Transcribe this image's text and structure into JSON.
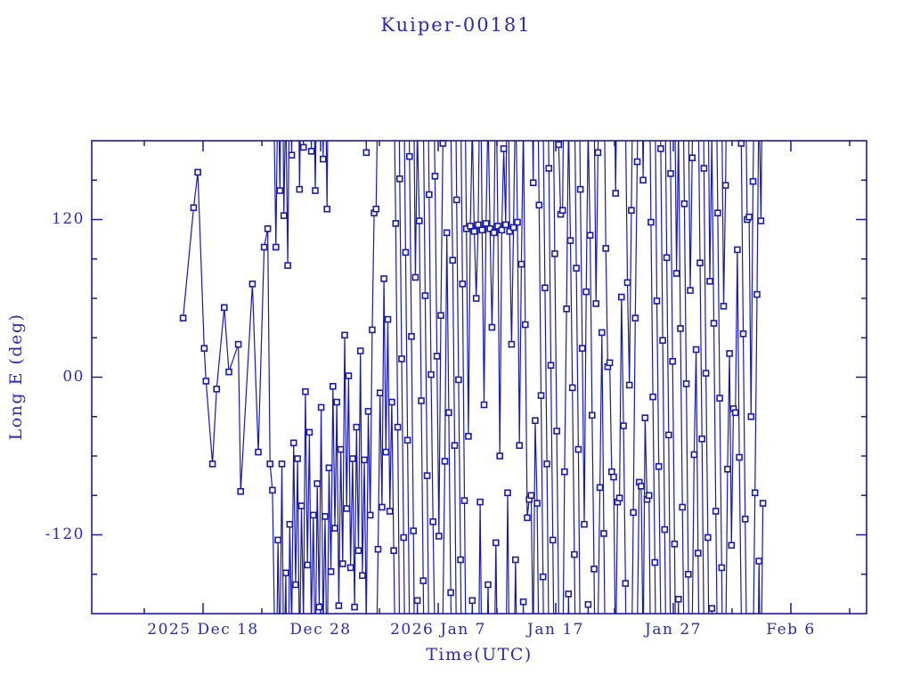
{
  "colors": {
    "background": "#ffffff",
    "plot_line": "#1a1aa4",
    "marker_stroke": "#1c1caa",
    "marker_fill": "#ffffff",
    "axis": "#1a1a9a",
    "text": "#2b2bb2"
  },
  "chart_data": {
    "type": "line",
    "title": "Kuiper-00181",
    "xlabel": "Time(UTC)",
    "ylabel": "Long E (deg)",
    "x_unit": "days since 2025 Dec 8 00:00 UTC",
    "x_range": [
      0.53,
      66.44
    ],
    "y_range": [
      -180,
      180
    ],
    "x_major_ticks": [
      {
        "day": 10,
        "label": "2025 Dec 18"
      },
      {
        "day": 20,
        "label": "Dec 28"
      },
      {
        "day": 30,
        "label": "2026 Jan 7"
      },
      {
        "day": 40,
        "label": "Jan 17"
      },
      {
        "day": 50,
        "label": "Jan 27"
      },
      {
        "day": 60,
        "label": "Feb 6"
      }
    ],
    "x_minor_step_days": 5,
    "y_major_ticks": [
      {
        "value": 120,
        "label": "120"
      },
      {
        "value": 0,
        "label": "00"
      },
      {
        "value": -120,
        "label": "-120"
      }
    ],
    "y_minor_step_deg": 30,
    "grid": false,
    "legend": "none",
    "marker": "open-square",
    "wrap_longitude_at": 180,
    "opening_points": [
      [
        8.3,
        45
      ],
      [
        9.2,
        129
      ],
      [
        9.55,
        156
      ],
      [
        10.1,
        22
      ],
      [
        10.25,
        -3
      ],
      [
        10.8,
        -66
      ],
      [
        11.15,
        -9
      ],
      [
        11.8,
        53
      ],
      [
        12.2,
        4
      ],
      [
        13.0,
        25
      ],
      [
        13.2,
        -87
      ],
      [
        14.2,
        71
      ],
      [
        14.7,
        -57
      ],
      [
        15.2,
        99
      ],
      [
        15.5,
        113
      ],
      [
        15.7,
        -66
      ],
      [
        15.9,
        -86
      ],
      [
        16.2,
        99
      ]
    ],
    "dense": {
      "day_start": 16.37,
      "day_step": 0.167,
      "longitudes": [
        -124,
        142,
        -66,
        123,
        -149,
        85,
        -112,
        169,
        -50,
        -158,
        -62,
        143,
        -98,
        175,
        -11,
        -143,
        -42,
        172,
        -105,
        142,
        -81,
        -175,
        -23,
        166,
        -106,
        128,
        -69,
        -148,
        -7,
        -115,
        -19,
        -174,
        -55,
        -142,
        32,
        -100,
        1,
        -145,
        -62,
        -175,
        -38,
        -132,
        20,
        -151,
        -63,
        171,
        -26,
        -105,
        36,
        125,
        128,
        -131,
        -12,
        -99,
        75,
        -57,
        44,
        -102,
        -19,
        -132,
        117,
        -38,
        151,
        14,
        -122,
        95,
        -48,
        168,
        31,
        -117,
        76,
        -170,
        119,
        -18,
        -155,
        62,
        -75,
        139,
        2,
        -110,
        153,
        16,
        -121,
        47,
        178,
        -64,
        110,
        -27,
        -164,
        89,
        -52,
        135,
        -2,
        -139,
        71,
        -94,
        113,
        -45,
        115,
        -170,
        111,
        60,
        116,
        -95,
        112,
        -21,
        117,
        -158,
        113,
        38,
        110,
        -126,
        115,
        -60,
        112,
        174,
        116,
        -88,
        111,
        25,
        114,
        -139,
        118,
        -52,
        86,
        -171,
        40,
        -107,
        -93,
        -90,
        148,
        -33,
        -96,
        131,
        -14,
        -152,
        68,
        -66,
        159,
        9,
        -124,
        94,
        -41,
        177,
        124,
        127,
        -72,
        52,
        -165,
        104,
        -8,
        -135,
        83,
        -55,
        143,
        22,
        -112,
        65,
        -173,
        108,
        -29,
        -146,
        56,
        171,
        -84,
        34,
        -119,
        98,
        8,
        11,
        -72,
        -76,
        140,
        -95,
        -92,
        61,
        -37,
        -157,
        72,
        -6,
        127,
        -103,
        45,
        164,
        -80,
        -83,
        150,
        -31,
        -93,
        -90,
        118,
        -15,
        -141,
        58,
        -68,
        174,
        28,
        -116,
        91,
        -44,
        155,
        12,
        -127,
        79,
        -169,
        37,
        -99,
        132,
        -5,
        -150,
        66,
        167,
        -59,
        21,
        -134,
        87,
        -47,
        159,
        3,
        -122,
        73,
        -176,
        41,
        -102,
        125,
        -16,
        -145,
        54,
        146,
        -70,
        18,
        -128,
        -24,
        -27,
        97,
        -61,
        178,
        33,
        -108,
        120,
        122,
        -30,
        149,
        -88,
        63,
        -140,
        119,
        -96
      ]
    }
  }
}
